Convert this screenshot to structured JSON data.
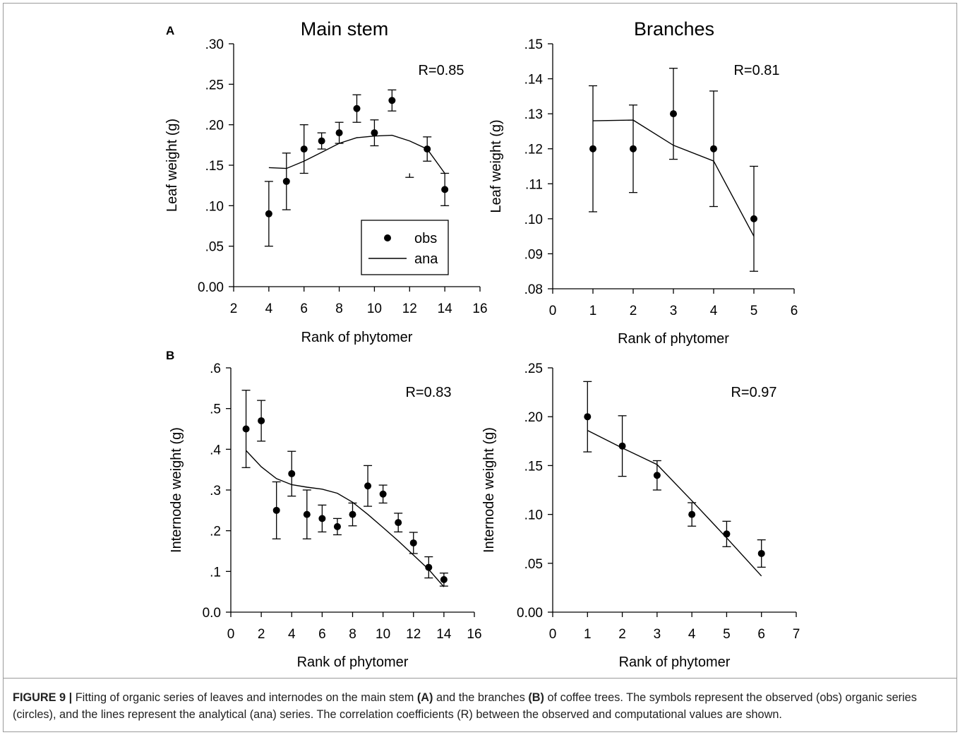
{
  "caption": {
    "label": "FIGURE 9 |",
    "text_1": " Fitting of organic series of leaves and internodes on the main stem ",
    "bold_a": "(A)",
    "text_2": " and the branches ",
    "bold_b": "(B)",
    "text_3": " of coffee trees. The symbols represent the observed (obs) organic series (circles), and the lines represent the analytical (ana) series. The correlation coefficients (R) between the observed and computational values are shown."
  },
  "chart_data": [
    {
      "id": "main-leaf",
      "type": "line",
      "panel_label": "A",
      "title": "Main stem",
      "xlabel": "Rank of phytomer",
      "ylabel": "Leaf weight (g)",
      "xlim": [
        2,
        16
      ],
      "ylim": [
        0,
        0.3
      ],
      "x_ticks": [
        "2",
        "4",
        "6",
        "8",
        "10",
        "12",
        "14",
        "16"
      ],
      "y_ticks": [
        "0.00",
        ".05",
        ".10",
        ".15",
        ".20",
        ".25",
        ".30"
      ],
      "annotation": "R=0.85",
      "legend": {
        "position": "bottom-right",
        "entries": [
          {
            "label": "obs",
            "kind": "dot"
          },
          {
            "label": "ana",
            "kind": "line"
          }
        ]
      },
      "obs": {
        "name": "obs",
        "x": [
          4,
          5,
          6,
          7,
          8,
          9,
          10,
          11,
          12,
          13,
          14
        ],
        "y": [
          0.09,
          0.13,
          0.17,
          0.18,
          0.19,
          0.22,
          0.19,
          0.23,
          null,
          0.17,
          0.12
        ],
        "err_up": [
          0.04,
          0.035,
          0.03,
          0.01,
          0.013,
          0.017,
          0.016,
          0.013,
          null,
          0.015,
          0.02
        ],
        "err_down": [
          0.04,
          0.035,
          0.03,
          0.01,
          0.013,
          0.017,
          0.016,
          0.013,
          0.005,
          0.015,
          0.02
        ]
      },
      "orphan_error": {
        "x": 12,
        "y": 0.14,
        "err_down": 0.005
      },
      "ana": {
        "name": "ana",
        "x": [
          4,
          5,
          6,
          7,
          8,
          9,
          10,
          11,
          12,
          13,
          14
        ],
        "y": [
          0.147,
          0.146,
          0.155,
          0.166,
          0.177,
          0.184,
          0.186,
          0.187,
          0.18,
          0.17,
          0.14
        ]
      }
    },
    {
      "id": "branch-leaf",
      "type": "line",
      "title": "Branches",
      "xlabel": "Rank of phytomer",
      "ylabel": "Leaf weight (g)",
      "xlim": [
        0,
        6
      ],
      "ylim": [
        0.08,
        0.15
      ],
      "x_ticks": [
        "0",
        "1",
        "2",
        "3",
        "4",
        "5",
        "6"
      ],
      "y_ticks": [
        ".08",
        ".09",
        ".10",
        ".11",
        ".12",
        ".13",
        ".14",
        ".15"
      ],
      "annotation": "R=0.81",
      "obs": {
        "x": [
          1,
          2,
          3,
          4,
          5
        ],
        "y": [
          0.12,
          0.12,
          0.13,
          0.12,
          0.1
        ],
        "err_up": [
          0.018,
          0.0125,
          0.013,
          0.0165,
          0.015
        ],
        "err_down": [
          0.018,
          0.0125,
          0.013,
          0.0165,
          0.015
        ]
      },
      "ana": {
        "x": [
          1,
          2,
          3,
          4,
          5
        ],
        "y": [
          0.128,
          0.1282,
          0.121,
          0.1165,
          0.095
        ]
      }
    },
    {
      "id": "main-internode",
      "type": "line",
      "panel_label": "B",
      "xlabel": "Rank of phytomer",
      "ylabel": "Internode weight (g)",
      "xlim": [
        0,
        16
      ],
      "ylim": [
        0,
        0.6
      ],
      "x_ticks": [
        "0",
        "2",
        "4",
        "6",
        "8",
        "10",
        "12",
        "14",
        "16"
      ],
      "y_ticks": [
        "0.0",
        ".1",
        ".2",
        ".3",
        ".4",
        ".5",
        ".6"
      ],
      "annotation": "R=0.83",
      "obs": {
        "x": [
          1,
          2,
          3,
          4,
          5,
          6,
          7,
          8,
          9,
          10,
          11,
          12,
          13,
          14
        ],
        "y": [
          0.45,
          0.47,
          0.25,
          0.34,
          0.24,
          0.23,
          0.21,
          0.24,
          0.31,
          0.29,
          0.22,
          0.17,
          0.11,
          0.08
        ],
        "err_up": [
          0.095,
          0.05,
          0.07,
          0.055,
          0.06,
          0.033,
          0.02,
          0.028,
          0.05,
          0.022,
          0.023,
          0.026,
          0.026,
          0.016
        ],
        "err_down": [
          0.095,
          0.05,
          0.07,
          0.055,
          0.06,
          0.033,
          0.02,
          0.028,
          0.05,
          0.022,
          0.023,
          0.026,
          0.026,
          0.016
        ]
      },
      "ana": {
        "x": [
          1,
          2,
          3,
          4,
          5,
          6,
          7,
          8,
          9,
          10,
          11,
          12,
          13,
          14
        ],
        "y": [
          0.397,
          0.357,
          0.328,
          0.313,
          0.307,
          0.302,
          0.292,
          0.27,
          0.24,
          0.208,
          0.175,
          0.14,
          0.105,
          0.062
        ]
      }
    },
    {
      "id": "branch-internode",
      "type": "line",
      "xlabel": "Rank of phytomer",
      "ylabel": "Internode weight (g)",
      "xlim": [
        0,
        7
      ],
      "ylim": [
        0,
        0.25
      ],
      "x_ticks": [
        "0",
        "1",
        "2",
        "3",
        "4",
        "5",
        "6",
        "7"
      ],
      "y_ticks": [
        "0.00",
        ".05",
        ".10",
        ".15",
        ".20",
        ".25"
      ],
      "annotation": "R=0.97",
      "obs": {
        "x": [
          1,
          2,
          3,
          4,
          5,
          6
        ],
        "y": [
          0.2,
          0.17,
          0.14,
          0.1,
          0.08,
          0.06
        ],
        "err_up": [
          0.036,
          0.031,
          0.015,
          0.012,
          0.013,
          0.014
        ],
        "err_down": [
          0.036,
          0.031,
          0.015,
          0.012,
          0.013,
          0.014
        ]
      },
      "ana": {
        "x": [
          1,
          2,
          3,
          4,
          5,
          6
        ],
        "y": [
          0.186,
          0.168,
          0.151,
          0.114,
          0.076,
          0.037
        ]
      }
    }
  ]
}
